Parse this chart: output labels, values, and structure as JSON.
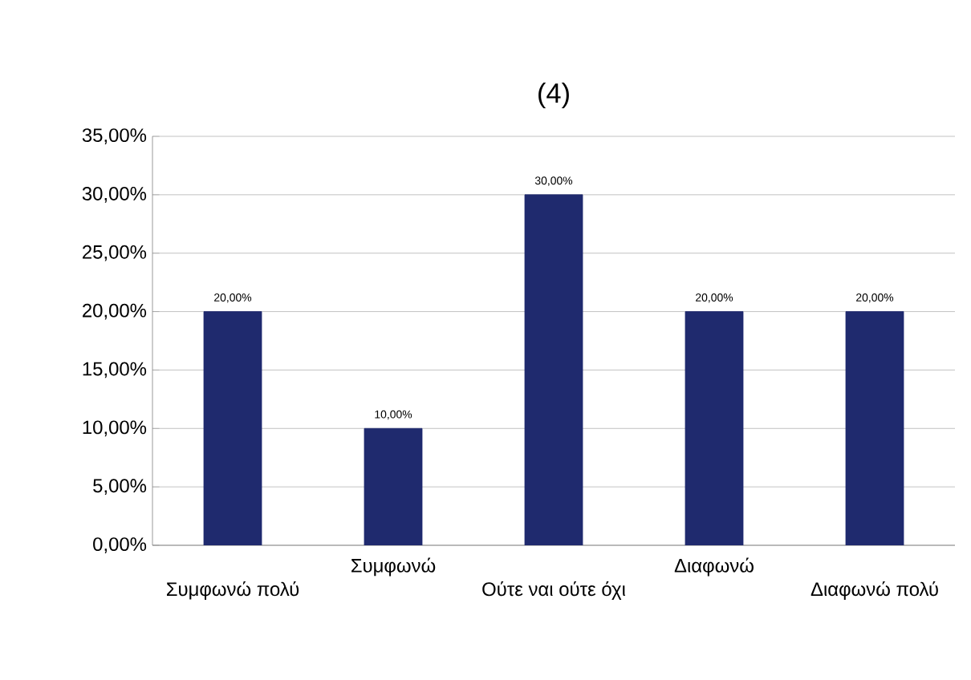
{
  "chart_data": {
    "type": "bar",
    "title": "(4)",
    "categories": [
      "Συμφωνώ πολύ",
      "Συμφωνώ",
      "Ούτε ναι ούτε όχι",
      "Διαφωνώ",
      "Διαφωνώ πολύ"
    ],
    "values": [
      20,
      10,
      30,
      20,
      20
    ],
    "value_labels": [
      "20,00%",
      "10,00%",
      "30,00%",
      "20,00%",
      "20,00%"
    ],
    "color": "#1f2a6e",
    "ylim": [
      0,
      35
    ],
    "yticks": [
      {
        "value": 0,
        "label": "0,00%"
      },
      {
        "value": 5,
        "label": "5,00%"
      },
      {
        "value": 10,
        "label": "10,00%"
      },
      {
        "value": 15,
        "label": "15,00%"
      },
      {
        "value": 20,
        "label": "20,00%"
      },
      {
        "value": 25,
        "label": "25,00%"
      },
      {
        "value": 30,
        "label": "30,00%"
      },
      {
        "value": 35,
        "label": "35,00%"
      }
    ],
    "grid": "y"
  }
}
